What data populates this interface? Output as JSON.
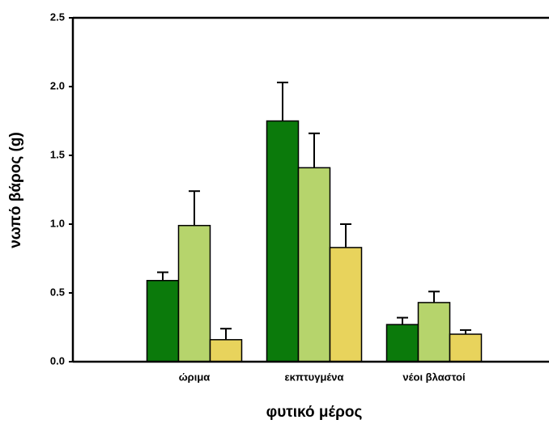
{
  "chart_data": {
    "type": "bar",
    "xlabel": "φυτικό μέρος",
    "ylabel": "νωπό βάρος (g)",
    "categories": [
      "ώριμα",
      "εκπτυγμένα",
      "νέοι βλαστοί"
    ],
    "series": [
      {
        "color": "#0b7a0b",
        "values": [
          0.59,
          1.75,
          0.27
        ],
        "errors": [
          0.06,
          0.28,
          0.05
        ]
      },
      {
        "color": "#b6d46c",
        "values": [
          0.99,
          1.41,
          0.43
        ],
        "errors": [
          0.25,
          0.25,
          0.08
        ]
      },
      {
        "color": "#e8d35c",
        "values": [
          0.16,
          0.83,
          0.2
        ],
        "errors": [
          0.08,
          0.17,
          0.03
        ]
      }
    ],
    "ylim": [
      0,
      2.5
    ],
    "yticks": [
      {
        "value": 0,
        "label": "0.0"
      },
      0.5,
      {
        "value": 1,
        "label": "1.0"
      },
      1.5,
      {
        "value": 2,
        "label": "2.0"
      },
      2.5
    ]
  }
}
